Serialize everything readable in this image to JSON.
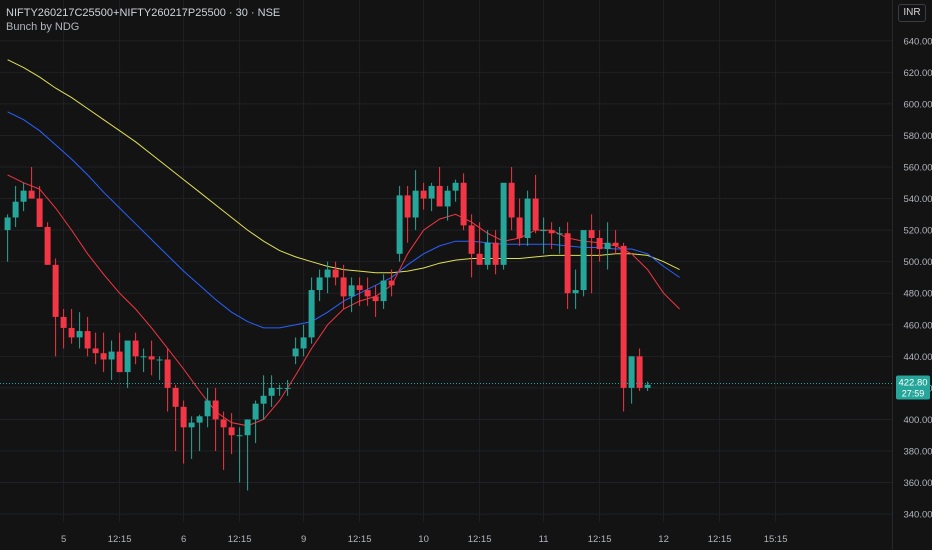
{
  "header": {
    "symbol": "NIFTY260217C25500+NIFTY260217P25500 · 30 · NSE",
    "indicator": "Bunch by NDG"
  },
  "currency": "INR",
  "price_tag": {
    "price": "422.80",
    "countdown": "27:59"
  },
  "colors": {
    "background": "#131313",
    "up": "#26a69a",
    "down": "#f23645",
    "ema_fast": "#f23645",
    "ema_mid": "#2962ff",
    "ema_slow": "#e0e056"
  },
  "chart_data": {
    "type": "candlestick",
    "y_ticks": [
      640,
      620,
      600,
      580,
      560,
      540,
      520,
      500,
      480,
      460,
      440,
      420,
      400,
      380,
      360,
      340
    ],
    "ylim": [
      335,
      650
    ],
    "x_labels": [
      {
        "label": "5",
        "index": 7
      },
      {
        "label": "12:15",
        "index": 14
      },
      {
        "label": "6",
        "index": 22
      },
      {
        "label": "12:15",
        "index": 29
      },
      {
        "label": "9",
        "index": 37
      },
      {
        "label": "12:15",
        "index": 44
      },
      {
        "label": "10",
        "index": 52
      },
      {
        "label": "12:15",
        "index": 59
      },
      {
        "label": "11",
        "index": 67
      },
      {
        "label": "12:15",
        "index": 74
      },
      {
        "label": "12",
        "index": 82
      },
      {
        "label": "12:15",
        "index": 89
      },
      {
        "label": "15:15",
        "index": 96
      }
    ],
    "candles": [
      [
        520,
        530,
        500,
        528
      ],
      [
        528,
        548,
        522,
        538
      ],
      [
        538,
        550,
        532,
        545
      ],
      [
        545,
        560,
        540,
        540
      ],
      [
        540,
        548,
        522,
        522
      ],
      [
        522,
        525,
        498,
        498
      ],
      [
        498,
        502,
        440,
        465
      ],
      [
        465,
        470,
        445,
        458
      ],
      [
        458,
        470,
        448,
        452
      ],
      [
        452,
        468,
        445,
        456
      ],
      [
        456,
        465,
        440,
        445
      ],
      [
        445,
        455,
        435,
        442
      ],
      [
        442,
        455,
        430,
        438
      ],
      [
        438,
        450,
        425,
        443
      ],
      [
        443,
        455,
        430,
        430
      ],
      [
        430,
        448,
        420,
        450
      ],
      [
        450,
        455,
        435,
        440
      ],
      [
        440,
        445,
        430,
        440
      ],
      [
        440,
        450,
        428,
        438
      ],
      [
        438,
        440,
        425,
        438
      ],
      [
        438,
        445,
        405,
        420
      ],
      [
        420,
        422,
        380,
        408
      ],
      [
        408,
        412,
        372,
        395
      ],
      [
        395,
        402,
        375,
        398
      ],
      [
        398,
        403,
        380,
        402
      ],
      [
        402,
        420,
        395,
        412
      ],
      [
        412,
        420,
        380,
        400
      ],
      [
        400,
        405,
        368,
        395
      ],
      [
        395,
        404,
        378,
        390
      ],
      [
        390,
        395,
        360,
        390
      ],
      [
        390,
        400,
        355,
        400
      ],
      [
        400,
        412,
        385,
        410
      ],
      [
        410,
        428,
        400,
        415
      ],
      [
        415,
        428,
        408,
        420
      ],
      [
        420,
        422,
        415,
        420
      ],
      [
        420,
        425,
        415,
        420
      ],
      [
        440,
        452,
        435,
        445
      ],
      [
        445,
        460,
        440,
        452
      ],
      [
        452,
        490,
        448,
        482
      ],
      [
        482,
        495,
        475,
        490
      ],
      [
        490,
        500,
        480,
        495
      ],
      [
        495,
        500,
        485,
        490
      ],
      [
        490,
        498,
        470,
        478
      ],
      [
        478,
        490,
        468,
        485
      ],
      [
        485,
        490,
        472,
        482
      ],
      [
        482,
        490,
        472,
        478
      ],
      [
        478,
        485,
        465,
        475
      ],
      [
        475,
        492,
        470,
        488
      ],
      [
        488,
        495,
        478,
        485
      ],
      [
        505,
        548,
        500,
        542
      ],
      [
        542,
        548,
        512,
        528
      ],
      [
        528,
        558,
        520,
        545
      ],
      [
        545,
        550,
        533,
        540
      ],
      [
        540,
        550,
        532,
        548
      ],
      [
        548,
        560,
        536,
        535
      ],
      [
        535,
        548,
        526,
        545
      ],
      [
        545,
        552,
        538,
        550
      ],
      [
        550,
        556,
        520,
        523
      ],
      [
        523,
        530,
        490,
        505
      ],
      [
        505,
        525,
        498,
        498
      ],
      [
        498,
        520,
        495,
        512
      ],
      [
        512,
        520,
        492,
        498
      ],
      [
        498,
        548,
        495,
        550
      ],
      [
        550,
        560,
        520,
        528
      ],
      [
        528,
        540,
        510,
        515
      ],
      [
        515,
        545,
        510,
        540
      ],
      [
        540,
        555,
        518,
        520
      ],
      [
        520,
        528,
        505,
        520
      ],
      [
        520,
        525,
        508,
        518
      ],
      [
        518,
        522,
        505,
        518
      ],
      [
        518,
        525,
        470,
        480
      ],
      [
        480,
        495,
        470,
        482
      ],
      [
        482,
        520,
        478,
        520
      ],
      [
        520,
        530,
        480,
        515
      ],
      [
        515,
        520,
        500,
        508
      ],
      [
        508,
        525,
        495,
        512
      ],
      [
        512,
        520,
        505,
        510
      ],
      [
        510,
        512,
        405,
        420
      ],
      [
        420,
        440,
        410,
        440
      ],
      [
        440,
        445,
        418,
        420
      ],
      [
        420,
        424,
        418,
        422
      ]
    ],
    "ema_fast": [
      [
        0,
        555
      ],
      [
        2,
        550
      ],
      [
        4,
        546
      ],
      [
        6,
        534
      ],
      [
        8,
        520
      ],
      [
        10,
        505
      ],
      [
        12,
        492
      ],
      [
        14,
        480
      ],
      [
        16,
        470
      ],
      [
        18,
        458
      ],
      [
        20,
        445
      ],
      [
        22,
        432
      ],
      [
        24,
        418
      ],
      [
        26,
        405
      ],
      [
        28,
        398
      ],
      [
        30,
        396
      ],
      [
        32,
        400
      ],
      [
        34,
        412
      ],
      [
        36,
        428
      ],
      [
        38,
        445
      ],
      [
        40,
        460
      ],
      [
        42,
        470
      ],
      [
        44,
        475
      ],
      [
        46,
        478
      ],
      [
        48,
        485
      ],
      [
        50,
        505
      ],
      [
        52,
        520
      ],
      [
        54,
        527
      ],
      [
        56,
        530
      ],
      [
        58,
        525
      ],
      [
        60,
        518
      ],
      [
        62,
        513
      ],
      [
        64,
        515
      ],
      [
        66,
        520
      ],
      [
        68,
        520
      ],
      [
        70,
        515
      ],
      [
        72,
        513
      ],
      [
        74,
        512
      ],
      [
        76,
        510
      ],
      [
        78,
        505
      ],
      [
        80,
        495
      ],
      [
        82,
        480
      ],
      [
        84,
        470
      ]
    ],
    "ema_mid": [
      [
        0,
        595
      ],
      [
        2,
        590
      ],
      [
        4,
        583
      ],
      [
        6,
        574
      ],
      [
        8,
        565
      ],
      [
        10,
        555
      ],
      [
        12,
        544
      ],
      [
        14,
        534
      ],
      [
        16,
        524
      ],
      [
        18,
        514
      ],
      [
        20,
        504
      ],
      [
        22,
        494
      ],
      [
        24,
        485
      ],
      [
        26,
        476
      ],
      [
        28,
        468
      ],
      [
        30,
        462
      ],
      [
        32,
        458
      ],
      [
        34,
        458
      ],
      [
        36,
        460
      ],
      [
        38,
        462
      ],
      [
        40,
        468
      ],
      [
        42,
        475
      ],
      [
        44,
        480
      ],
      [
        46,
        485
      ],
      [
        48,
        490
      ],
      [
        50,
        498
      ],
      [
        52,
        505
      ],
      [
        54,
        510
      ],
      [
        56,
        513
      ],
      [
        58,
        513
      ],
      [
        60,
        512
      ],
      [
        62,
        511
      ],
      [
        64,
        511
      ],
      [
        66,
        511
      ],
      [
        68,
        511
      ],
      [
        70,
        510
      ],
      [
        72,
        509
      ],
      [
        74,
        509
      ],
      [
        76,
        508
      ],
      [
        78,
        508
      ],
      [
        80,
        505
      ],
      [
        82,
        497
      ],
      [
        84,
        490
      ]
    ],
    "ema_slow": [
      [
        0,
        628
      ],
      [
        2,
        623
      ],
      [
        4,
        617
      ],
      [
        6,
        610
      ],
      [
        8,
        604
      ],
      [
        10,
        597
      ],
      [
        12,
        590
      ],
      [
        14,
        583
      ],
      [
        16,
        576
      ],
      [
        18,
        568
      ],
      [
        20,
        560
      ],
      [
        22,
        552
      ],
      [
        24,
        544
      ],
      [
        26,
        536
      ],
      [
        28,
        528
      ],
      [
        30,
        520
      ],
      [
        32,
        513
      ],
      [
        34,
        507
      ],
      [
        36,
        503
      ],
      [
        38,
        500
      ],
      [
        40,
        497
      ],
      [
        42,
        495
      ],
      [
        44,
        494
      ],
      [
        46,
        493
      ],
      [
        48,
        493
      ],
      [
        50,
        494
      ],
      [
        52,
        496
      ],
      [
        54,
        499
      ],
      [
        56,
        501
      ],
      [
        58,
        502
      ],
      [
        60,
        502
      ],
      [
        62,
        502
      ],
      [
        64,
        502
      ],
      [
        66,
        503
      ],
      [
        68,
        504
      ],
      [
        70,
        504
      ],
      [
        72,
        504
      ],
      [
        74,
        504
      ],
      [
        76,
        505
      ],
      [
        78,
        505
      ],
      [
        80,
        504
      ],
      [
        82,
        500
      ],
      [
        84,
        495
      ]
    ],
    "last_price": 422.8
  }
}
